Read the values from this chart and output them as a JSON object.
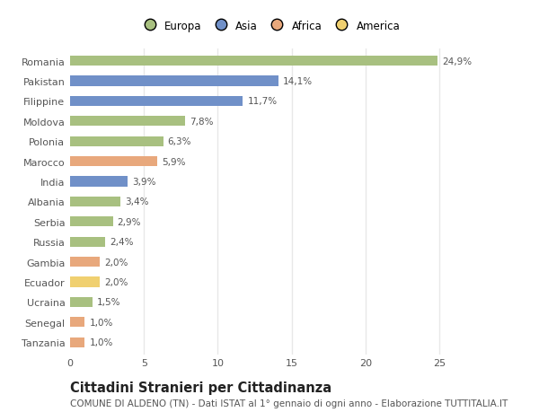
{
  "categories": [
    "Tanzania",
    "Senegal",
    "Ucraina",
    "Ecuador",
    "Gambia",
    "Russia",
    "Serbia",
    "Albania",
    "India",
    "Marocco",
    "Polonia",
    "Moldova",
    "Filippine",
    "Pakistan",
    "Romania"
  ],
  "values": [
    1.0,
    1.0,
    1.5,
    2.0,
    2.0,
    2.4,
    2.9,
    3.4,
    3.9,
    5.9,
    6.3,
    7.8,
    11.7,
    14.1,
    24.9
  ],
  "labels": [
    "1,0%",
    "1,0%",
    "1,5%",
    "2,0%",
    "2,0%",
    "2,4%",
    "2,9%",
    "3,4%",
    "3,9%",
    "5,9%",
    "6,3%",
    "7,8%",
    "11,7%",
    "14,1%",
    "24,9%"
  ],
  "colors": [
    "#e8a87c",
    "#e8a87c",
    "#a8c080",
    "#f0d070",
    "#e8a87c",
    "#a8c080",
    "#a8c080",
    "#a8c080",
    "#7090c8",
    "#e8a87c",
    "#a8c080",
    "#a8c080",
    "#7090c8",
    "#7090c8",
    "#a8c080"
  ],
  "legend_labels": [
    "Europa",
    "Asia",
    "Africa",
    "America"
  ],
  "legend_colors": [
    "#a8c080",
    "#7090c8",
    "#e8a87c",
    "#f0d070"
  ],
  "title": "Cittadini Stranieri per Cittadinanza",
  "subtitle": "COMUNE DI ALDENO (TN) - Dati ISTAT al 1° gennaio di ogni anno - Elaborazione TUTTITALIA.IT",
  "xlim": [
    0,
    27
  ],
  "background_color": "#ffffff",
  "plot_bg_color": "#ffffff",
  "grid_color": "#e8e8e8",
  "bar_height": 0.5,
  "title_fontsize": 10.5,
  "subtitle_fontsize": 7.5,
  "label_fontsize": 7.5,
  "tick_fontsize": 8,
  "legend_fontsize": 8.5
}
